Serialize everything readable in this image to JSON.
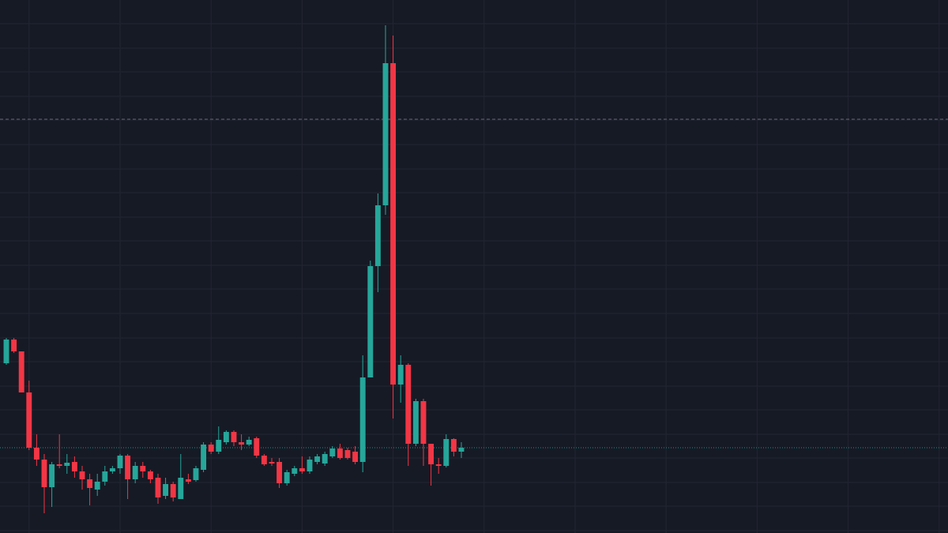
{
  "chart_data": {
    "type": "candlestick",
    "x": [
      0,
      1,
      2,
      3,
      4,
      5,
      6,
      7,
      8,
      9,
      10,
      11,
      12,
      13,
      14,
      15,
      16,
      17,
      18,
      19,
      20,
      21,
      22,
      23,
      24,
      25,
      26,
      27,
      28,
      29,
      30,
      31,
      32,
      33,
      34,
      35,
      36,
      37,
      38,
      39,
      40,
      41,
      42,
      43,
      44,
      45,
      46,
      47,
      48,
      49,
      50,
      51,
      52,
      53,
      54,
      55,
      56,
      57,
      58,
      59,
      60
    ],
    "open": [
      215,
      245,
      230,
      178,
      108,
      93,
      58,
      87,
      85,
      90,
      78,
      68,
      55,
      65,
      78,
      82,
      98,
      68,
      85,
      78,
      70,
      47,
      62,
      43,
      68,
      67,
      80,
      112,
      103,
      115,
      128,
      115,
      112,
      120,
      98,
      90,
      90,
      63,
      75,
      82,
      78,
      90,
      88,
      97,
      107,
      105,
      103,
      90,
      197,
      338,
      415,
      595,
      188,
      213,
      113,
      167,
      113,
      87,
      85,
      119,
      103
    ],
    "high": [
      247,
      247,
      230,
      193,
      125,
      100,
      90,
      125,
      100,
      97,
      85,
      75,
      75,
      85,
      85,
      100,
      100,
      90,
      90,
      80,
      75,
      70,
      65,
      100,
      75,
      85,
      115,
      115,
      135,
      130,
      130,
      125,
      122,
      122,
      100,
      95,
      95,
      80,
      85,
      97,
      97,
      100,
      103,
      110,
      113,
      108,
      110,
      225,
      345,
      430,
      643,
      630,
      225,
      215,
      170,
      170,
      113,
      95,
      125,
      120,
      115
    ],
    "low": [
      213,
      228,
      178,
      105,
      85,
      25,
      33,
      82,
      75,
      70,
      55,
      35,
      47,
      60,
      75,
      75,
      43,
      63,
      70,
      63,
      37,
      43,
      40,
      43,
      62,
      65,
      77,
      100,
      100,
      112,
      110,
      105,
      110,
      95,
      85,
      85,
      57,
      60,
      72,
      75,
      75,
      87,
      85,
      95,
      93,
      93,
      87,
      77,
      197,
      305,
      403,
      145,
      165,
      85,
      110,
      85,
      60,
      75,
      83,
      97,
      95
    ],
    "close": [
      245,
      230,
      178,
      108,
      93,
      58,
      87,
      85,
      89,
      78,
      68,
      57,
      65,
      78,
      82,
      98,
      68,
      85,
      78,
      68,
      45,
      62,
      45,
      70,
      65,
      82,
      112,
      103,
      118,
      128,
      115,
      112,
      118,
      98,
      87,
      88,
      63,
      77,
      82,
      78,
      93,
      97,
      100,
      107,
      95,
      95,
      90,
      197,
      338,
      415,
      595,
      188,
      213,
      113,
      167,
      113,
      87,
      85,
      119,
      103,
      108
    ],
    "up_color": "#26a69a",
    "down_color": "#f23645",
    "xlim": [
      -0.833,
      124.17
    ],
    "xticks": [
      3,
      15,
      27,
      39,
      51,
      63,
      75,
      87,
      99,
      111,
      123
    ],
    "ylim": [
      0,
      675
    ],
    "yticks": [
      3,
      34,
      64,
      95,
      125,
      156,
      186,
      217,
      247,
      278,
      309,
      339,
      370,
      400,
      431,
      461,
      492,
      523,
      553,
      584,
      614,
      645
    ],
    "grid": true,
    "price_lines": [
      {
        "value": 524,
        "style": "dashed",
        "color": "#787b86"
      },
      {
        "value": 108,
        "style": "dotted",
        "color": "#26a69a"
      }
    ]
  }
}
